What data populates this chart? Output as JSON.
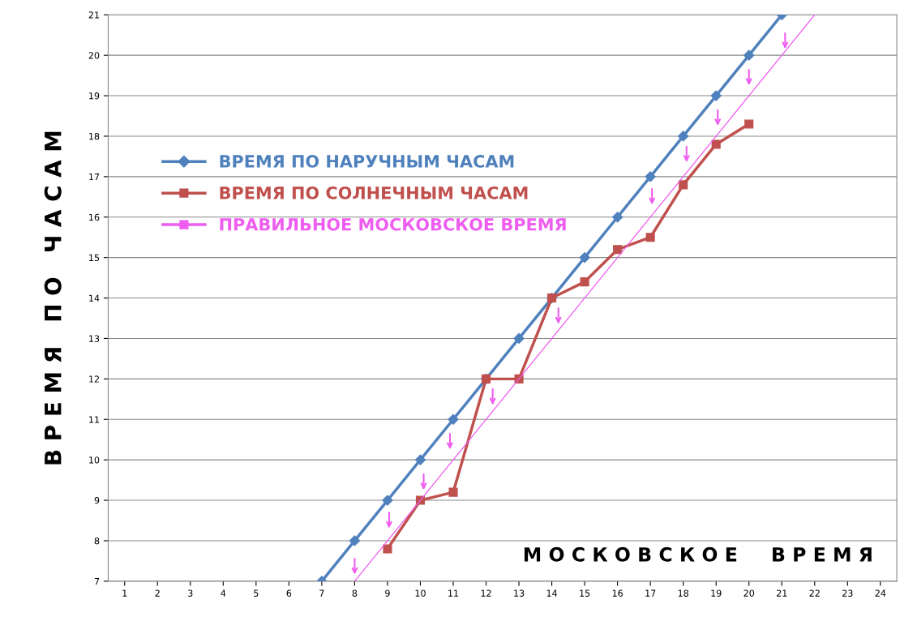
{
  "chart_data": {
    "type": "line",
    "xlabel": "М О С К О В С К О Е     В Р Е М Я",
    "ylabel": "В Р Е М Я   П О   Ч А С А М",
    "xlim": [
      0.5,
      24.5
    ],
    "xticks": [
      1,
      2,
      3,
      4,
      5,
      6,
      7,
      8,
      9,
      10,
      11,
      12,
      13,
      14,
      15,
      16,
      17,
      18,
      19,
      20,
      21,
      22,
      23,
      24
    ],
    "ylim": [
      7,
      21
    ],
    "yticks": [
      7,
      8,
      9,
      10,
      11,
      12,
      13,
      14,
      15,
      16,
      17,
      18,
      19,
      20,
      21
    ],
    "grid": "y",
    "legend": "top left",
    "series": [
      {
        "name": "ВРЕМЯ ПО НАРУЧНЫМ ЧАСАМ",
        "color": "#4f81bd",
        "marker": "diamond",
        "x": [
          7,
          8,
          9,
          10,
          11,
          12,
          13,
          14,
          15,
          16,
          17,
          18,
          19,
          20,
          21
        ],
        "values": [
          7,
          8,
          9,
          10,
          11,
          12,
          13,
          14,
          15,
          16,
          17,
          18,
          19,
          20,
          21
        ]
      },
      {
        "name": "ВРЕМЯ ПО СОЛНЕЧНЫМ ЧАСАМ",
        "color": "#c0504d",
        "marker": "square",
        "x": [
          9,
          10,
          11,
          12,
          13,
          14,
          15,
          16,
          17,
          18,
          19,
          20
        ],
        "values": [
          7.8,
          9,
          9.2,
          12,
          12,
          14,
          14.4,
          15.2,
          15.5,
          16.8,
          17.8,
          18.3
        ]
      },
      {
        "name": "ПРАВИЛЬНОЕ МОСКОВСКОЕ ВРЕМЯ",
        "color": "#ee5cf0",
        "marker": "none",
        "x": [
          8,
          22
        ],
        "values": [
          7,
          21
        ]
      }
    ]
  }
}
